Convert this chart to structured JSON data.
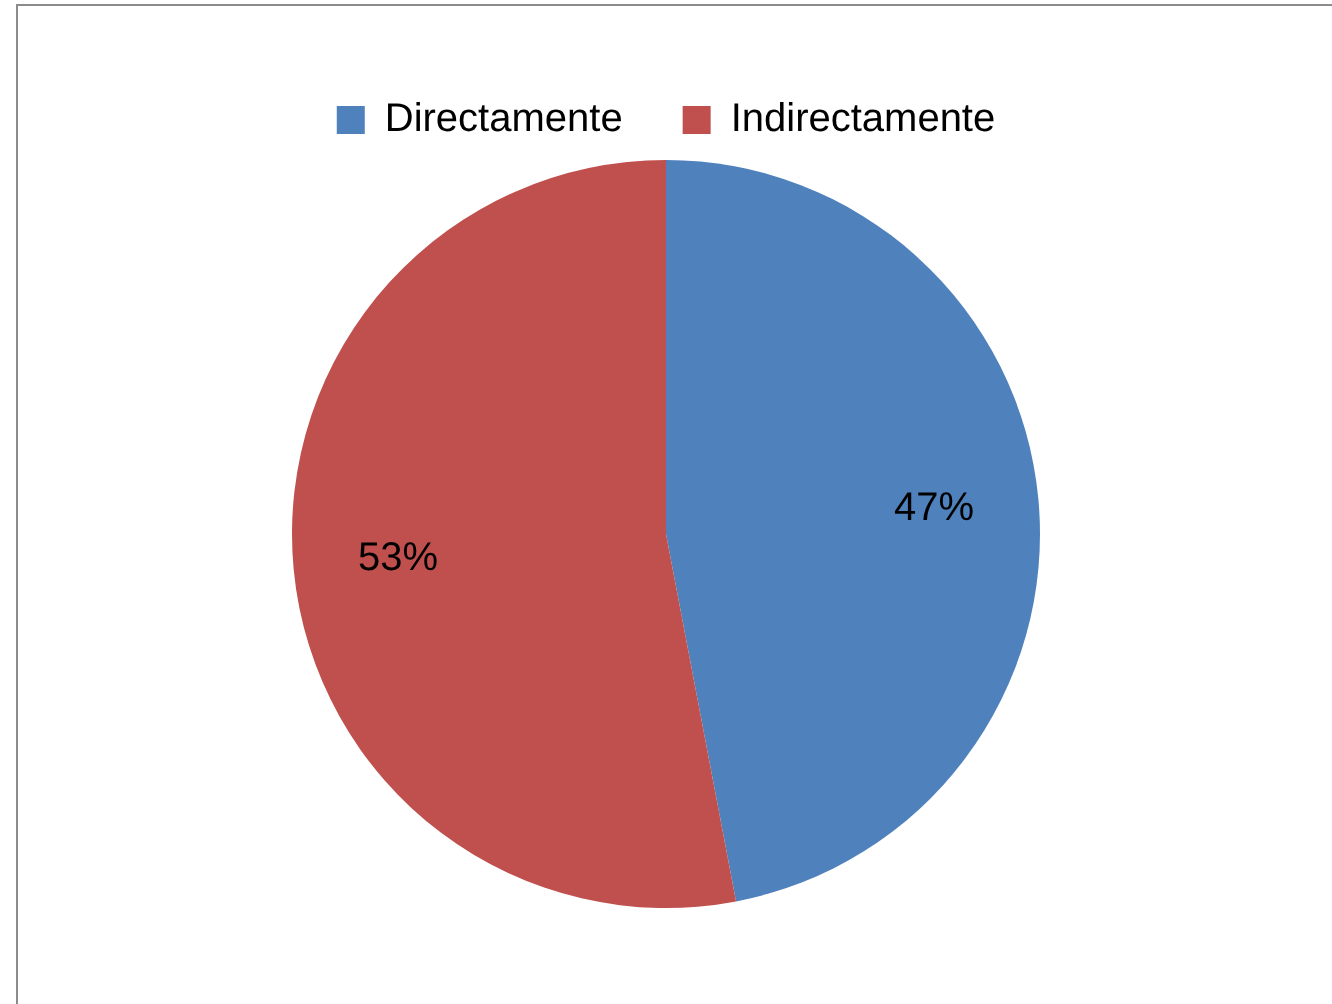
{
  "chart_data": {
    "type": "pie",
    "categories": [
      "Directamente",
      "Indirectamente"
    ],
    "values": [
      47,
      53
    ],
    "colors": [
      "#4f81bd",
      "#c0504d"
    ],
    "value_labels": [
      "47%",
      "53%"
    ],
    "legend": "top"
  }
}
